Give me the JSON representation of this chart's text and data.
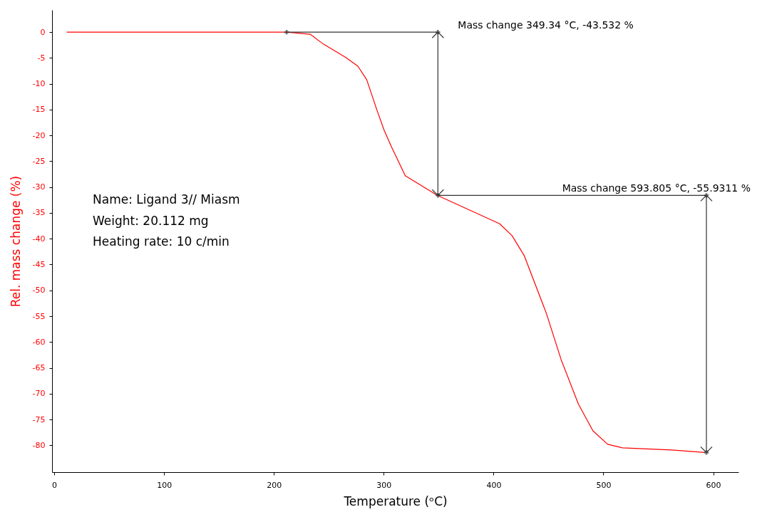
{
  "chart_data": {
    "type": "line",
    "xlabel": "Temperature (ᵒC)",
    "ylabel": "Rel. mass change (%)",
    "xlim": [
      -2,
      623
    ],
    "xticks": [
      0,
      100,
      200,
      300,
      400,
      500,
      600
    ],
    "ylim": [
      -85.2,
      4.3
    ],
    "yticks": [
      -80,
      -75,
      -70,
      -65,
      -60,
      -55,
      -50,
      -45,
      -40,
      -35,
      -30,
      -25,
      -20,
      -15,
      -10,
      -5,
      0
    ],
    "series": [
      {
        "color": "#ff0000",
        "x": [
          11.3,
          211.6,
          233,
          245,
          265.5,
          276.5,
          284.5,
          294,
          300.4,
          307.3,
          319.6,
          348.7,
          405.6,
          416.8,
          428,
          448,
          461.5,
          477.2,
          490.5,
          503.9,
          517.4,
          562.1,
          592.3
        ],
        "values": [
          0,
          0,
          -0.4,
          -2.3,
          -4.9,
          -6.6,
          -9.2,
          -15.2,
          -19,
          -22.3,
          -27.8,
          -31.6,
          -37.1,
          -39.4,
          -43.3,
          -54.4,
          -63.4,
          -72,
          -77.2,
          -79.8,
          -80.5,
          -80.9,
          -81.4
        ]
      },
      {
        "color": "#333333",
        "marker": "cross",
        "x": [
          211.6,
          349.34,
          349.34,
          593.805,
          593.805
        ],
        "values": [
          0,
          0,
          -31.6,
          -31.6,
          -81.4
        ]
      }
    ],
    "annotations": [
      {
        "text": "Mass change 349.34 °C,  -43.532 %",
        "x": 349.34,
        "y": 0
      },
      {
        "text": "Mass change 593.805 °C,  -55.9311 %",
        "x": 593.805,
        "y": -31.6
      },
      "Name: Ligand 3// Miasm",
      "Weight: 20.112 mg",
      "Heating rate: 10 c/min"
    ]
  }
}
